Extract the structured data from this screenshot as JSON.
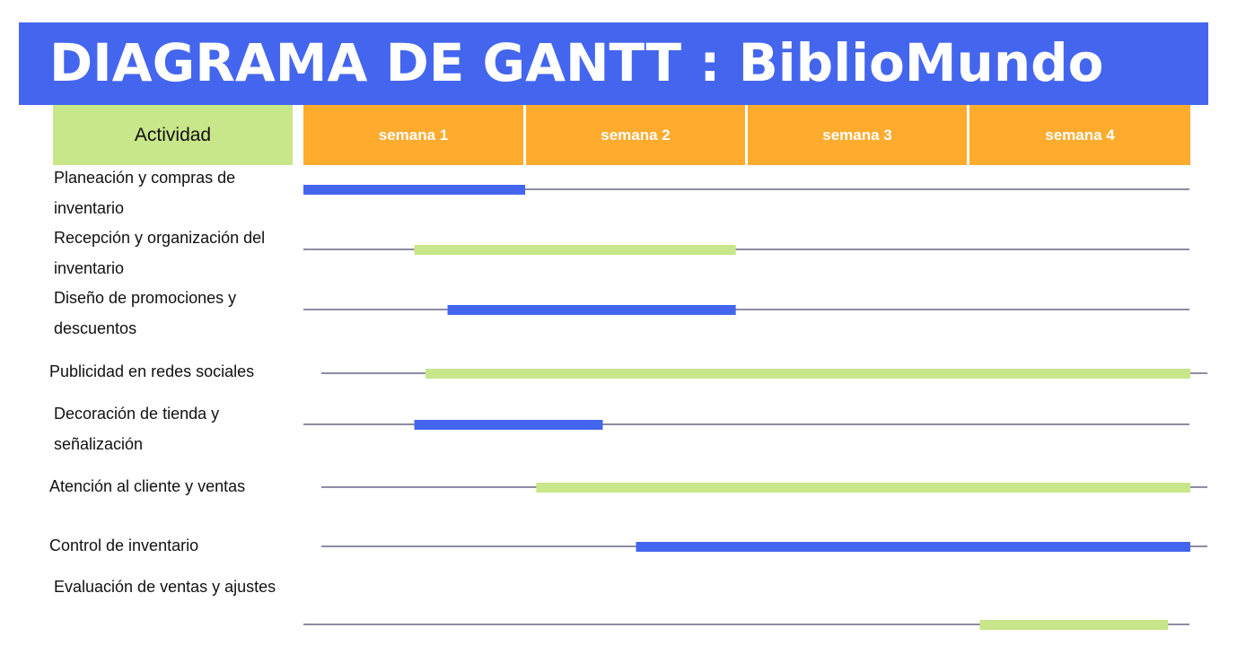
{
  "title": "DIAGRAMA DE GANTT : BiblioMundo",
  "activity_header": "Actividad",
  "weeks": [
    "semana 1",
    "semana 2",
    "semana 3",
    "semana 4"
  ],
  "colors": {
    "title_bg": "#4466ee",
    "activity_header_bg": "#c8e68a",
    "week_header_bg": "#ffab2e",
    "bar_blue": "#4466ee",
    "bar_green": "#c8e68a",
    "timeline_line": "#1a1a4a"
  },
  "chart_data": {
    "type": "gantt",
    "x_unit": "semana",
    "xlim": [
      0,
      4
    ],
    "tasks": [
      {
        "name": "Planeación y compras de inventario",
        "start": 0.0,
        "end": 1.0,
        "color": "blue"
      },
      {
        "name": "Recepción y organización del inventario",
        "start": 0.5,
        "end": 1.95,
        "color": "green"
      },
      {
        "name": "Diseño de promociones y descuentos",
        "start": 0.65,
        "end": 1.95,
        "color": "blue"
      },
      {
        "name": "Publicidad en redes sociales",
        "start": 0.55,
        "end": 4.0,
        "color": "green"
      },
      {
        "name": "Decoración de tienda y señalización",
        "start": 0.5,
        "end": 1.35,
        "color": "blue"
      },
      {
        "name": "Atención al cliente y ventas",
        "start": 1.05,
        "end": 4.0,
        "color": "green"
      },
      {
        "name": "Control de inventario",
        "start": 1.5,
        "end": 4.0,
        "color": "blue"
      },
      {
        "name": "Evaluación de ventas y ajustes",
        "start": 3.05,
        "end": 3.9,
        "color": "green"
      }
    ]
  }
}
